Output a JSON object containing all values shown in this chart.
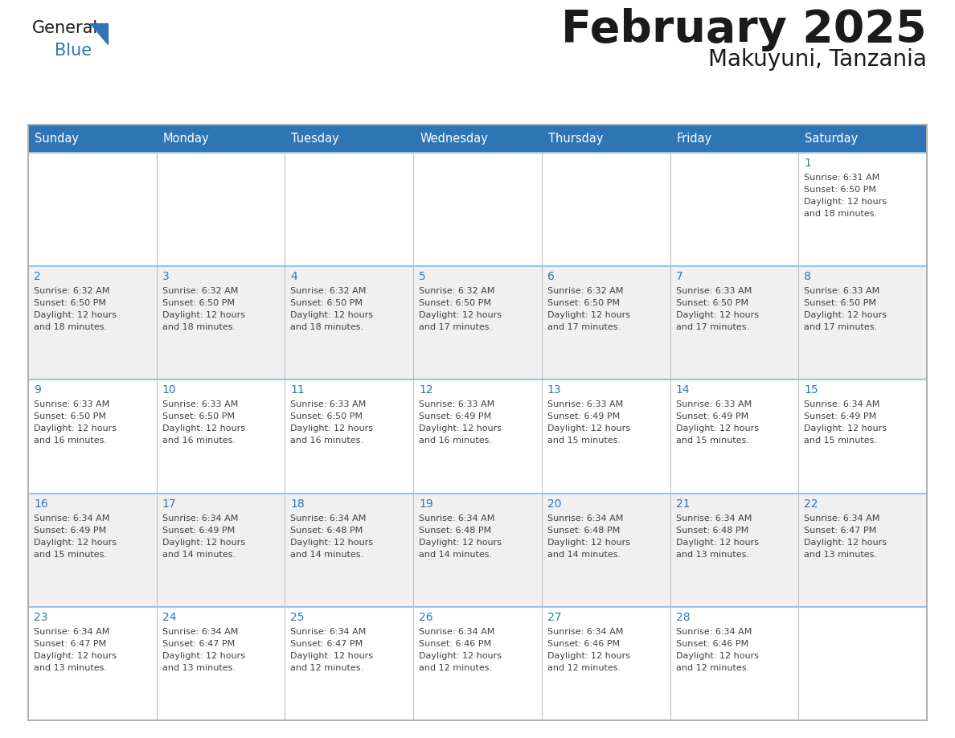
{
  "title": "February 2025",
  "subtitle": "Makuyuni, Tanzania",
  "days_of_week": [
    "Sunday",
    "Monday",
    "Tuesday",
    "Wednesday",
    "Thursday",
    "Friday",
    "Saturday"
  ],
  "header_bg": "#2E75B6",
  "header_text": "#FFFFFF",
  "row_bg_white": "#FFFFFF",
  "row_bg_gray": "#F0F0F0",
  "border_color": "#9DC3E6",
  "outer_border_color": "#B0B0B0",
  "day_num_color": "#2E75B6",
  "text_color": "#404040",
  "logo_general_color": "#1A1A1A",
  "logo_blue_color": "#2E75B6",
  "calendar": [
    [
      null,
      null,
      null,
      null,
      null,
      null,
      {
        "day": 1,
        "sunrise": "6:31 AM",
        "sunset": "6:50 PM",
        "daylight": "12 hours and 18 minutes."
      }
    ],
    [
      {
        "day": 2,
        "sunrise": "6:32 AM",
        "sunset": "6:50 PM",
        "daylight": "12 hours and 18 minutes."
      },
      {
        "day": 3,
        "sunrise": "6:32 AM",
        "sunset": "6:50 PM",
        "daylight": "12 hours and 18 minutes."
      },
      {
        "day": 4,
        "sunrise": "6:32 AM",
        "sunset": "6:50 PM",
        "daylight": "12 hours and 18 minutes."
      },
      {
        "day": 5,
        "sunrise": "6:32 AM",
        "sunset": "6:50 PM",
        "daylight": "12 hours and 17 minutes."
      },
      {
        "day": 6,
        "sunrise": "6:32 AM",
        "sunset": "6:50 PM",
        "daylight": "12 hours and 17 minutes."
      },
      {
        "day": 7,
        "sunrise": "6:33 AM",
        "sunset": "6:50 PM",
        "daylight": "12 hours and 17 minutes."
      },
      {
        "day": 8,
        "sunrise": "6:33 AM",
        "sunset": "6:50 PM",
        "daylight": "12 hours and 17 minutes."
      }
    ],
    [
      {
        "day": 9,
        "sunrise": "6:33 AM",
        "sunset": "6:50 PM",
        "daylight": "12 hours and 16 minutes."
      },
      {
        "day": 10,
        "sunrise": "6:33 AM",
        "sunset": "6:50 PM",
        "daylight": "12 hours and 16 minutes."
      },
      {
        "day": 11,
        "sunrise": "6:33 AM",
        "sunset": "6:50 PM",
        "daylight": "12 hours and 16 minutes."
      },
      {
        "day": 12,
        "sunrise": "6:33 AM",
        "sunset": "6:49 PM",
        "daylight": "12 hours and 16 minutes."
      },
      {
        "day": 13,
        "sunrise": "6:33 AM",
        "sunset": "6:49 PM",
        "daylight": "12 hours and 15 minutes."
      },
      {
        "day": 14,
        "sunrise": "6:33 AM",
        "sunset": "6:49 PM",
        "daylight": "12 hours and 15 minutes."
      },
      {
        "day": 15,
        "sunrise": "6:34 AM",
        "sunset": "6:49 PM",
        "daylight": "12 hours and 15 minutes."
      }
    ],
    [
      {
        "day": 16,
        "sunrise": "6:34 AM",
        "sunset": "6:49 PM",
        "daylight": "12 hours and 15 minutes."
      },
      {
        "day": 17,
        "sunrise": "6:34 AM",
        "sunset": "6:49 PM",
        "daylight": "12 hours and 14 minutes."
      },
      {
        "day": 18,
        "sunrise": "6:34 AM",
        "sunset": "6:48 PM",
        "daylight": "12 hours and 14 minutes."
      },
      {
        "day": 19,
        "sunrise": "6:34 AM",
        "sunset": "6:48 PM",
        "daylight": "12 hours and 14 minutes."
      },
      {
        "day": 20,
        "sunrise": "6:34 AM",
        "sunset": "6:48 PM",
        "daylight": "12 hours and 14 minutes."
      },
      {
        "day": 21,
        "sunrise": "6:34 AM",
        "sunset": "6:48 PM",
        "daylight": "12 hours and 13 minutes."
      },
      {
        "day": 22,
        "sunrise": "6:34 AM",
        "sunset": "6:47 PM",
        "daylight": "12 hours and 13 minutes."
      }
    ],
    [
      {
        "day": 23,
        "sunrise": "6:34 AM",
        "sunset": "6:47 PM",
        "daylight": "12 hours and 13 minutes."
      },
      {
        "day": 24,
        "sunrise": "6:34 AM",
        "sunset": "6:47 PM",
        "daylight": "12 hours and 13 minutes."
      },
      {
        "day": 25,
        "sunrise": "6:34 AM",
        "sunset": "6:47 PM",
        "daylight": "12 hours and 12 minutes."
      },
      {
        "day": 26,
        "sunrise": "6:34 AM",
        "sunset": "6:46 PM",
        "daylight": "12 hours and 12 minutes."
      },
      {
        "day": 27,
        "sunrise": "6:34 AM",
        "sunset": "6:46 PM",
        "daylight": "12 hours and 12 minutes."
      },
      {
        "day": 28,
        "sunrise": "6:34 AM",
        "sunset": "6:46 PM",
        "daylight": "12 hours and 12 minutes."
      },
      null
    ]
  ]
}
